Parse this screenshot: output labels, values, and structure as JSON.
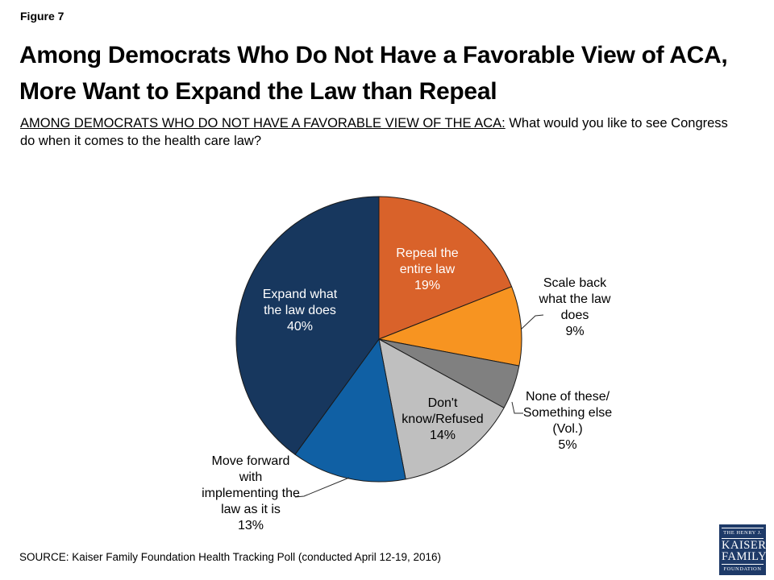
{
  "figure_label": "Figure 7",
  "title_lines": [
    "Among Democrats Who Do Not Have a Favorable View of ACA,",
    "More Want to Expand the Law than Repeal"
  ],
  "question": {
    "underlined": "AMONG DEMOCRATS WHO DO NOT HAVE A FAVORABLE VIEW OF THE ACA:",
    "rest": " What would you like to see Congress do when it comes to the health care law?"
  },
  "source": "SOURCE: Kaiser Family Foundation Health Tracking Poll (conducted April 12-19, 2016)",
  "logo": {
    "top": "THE HENRY J.",
    "name_line1": "KAISER",
    "name_line2": "FAMILY",
    "bottom": "FOUNDATION"
  },
  "chart_data": {
    "type": "pie",
    "title": "",
    "start_angle_deg": 0,
    "direction": "clockwise",
    "units": "percent",
    "slices": [
      {
        "label": "Repeal the entire law",
        "value": 19,
        "color": "#D9622A",
        "label_placement": "inside",
        "display": "Repeal the\nentire law\n19%"
      },
      {
        "label": "Scale back what the law does",
        "value": 9,
        "color": "#F79421",
        "label_placement": "outside",
        "display": "Scale back\nwhat the law\ndoes\n9%"
      },
      {
        "label": "None of these/Something else (Vol.)",
        "value": 5,
        "color": "#808080",
        "label_placement": "outside",
        "display": "None of these/\nSomething else\n(Vol.)\n5%"
      },
      {
        "label": "Don't know/Refused",
        "value": 14,
        "color": "#BFBFBF",
        "label_placement": "inside",
        "display": "Don't\nknow/Refused\n14%"
      },
      {
        "label": "Move forward with implementing the law as it is",
        "value": 13,
        "color": "#1060A4",
        "label_placement": "outside",
        "display": "Move forward\nwith\nimplementing the\nlaw as it is\n13%"
      },
      {
        "label": "Expand what the law does",
        "value": 40,
        "color": "#17375E",
        "label_placement": "inside",
        "display": "Expand what\nthe law does\n40%"
      }
    ]
  }
}
